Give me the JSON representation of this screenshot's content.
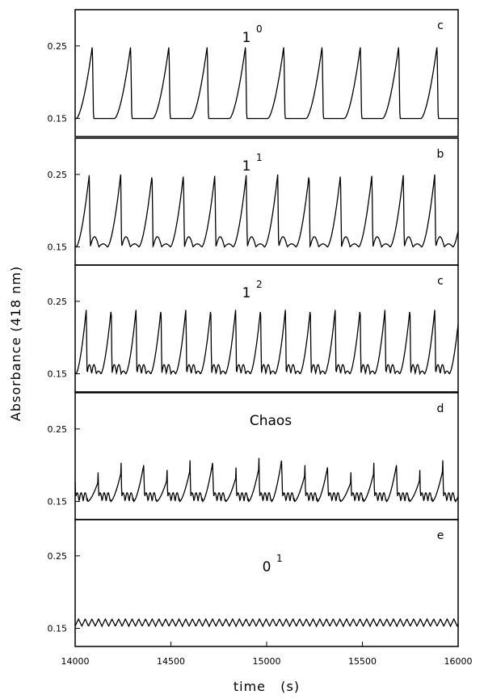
{
  "chart_data": {
    "type": "line",
    "xlabel": "time   (s)",
    "ylabel": "Absorbance (418 nm)",
    "xlim": [
      14000,
      16000
    ],
    "x_ticks": [
      "14000",
      "14500",
      "15000",
      "15500",
      "16000"
    ],
    "x_tick_values": [
      14000,
      14500,
      15000,
      15500,
      16000
    ],
    "y_ticks": [
      "0.15",
      "0.25"
    ],
    "y_tick_values": [
      0.15,
      0.25
    ],
    "ylim": [
      0.125,
      0.3
    ],
    "line_color": "#000000",
    "panels": [
      {
        "letter": "c",
        "label": "1",
        "label_sup": "0",
        "pattern": "1^0 (one large oscillation per period)",
        "period_s": 200,
        "min": 0.15,
        "max": 0.25,
        "small_oscillations_per_period": 0
      },
      {
        "letter": "b",
        "label": "1",
        "label_sup": "1",
        "pattern": "1^1 (one large + one small oscillation per period)",
        "period_s": 164,
        "min": 0.15,
        "max": 0.25,
        "small_oscillations_per_period": 1
      },
      {
        "letter": "c",
        "label": "1",
        "label_sup": "2",
        "pattern": "1^2 (one large + two small oscillations per period)",
        "period_s": 130,
        "min": 0.15,
        "max": 0.24,
        "small_oscillations_per_period": 2
      },
      {
        "letter": "d",
        "label": "Chaos",
        "label_sup": "",
        "pattern": "chaotic mixed-mode oscillations",
        "min": 0.15,
        "max": 0.21
      },
      {
        "letter": "e",
        "label": "0",
        "label_sup": "1",
        "pattern": "0^1 (small-amplitude oscillations only)",
        "period_s": 35,
        "min": 0.153,
        "max": 0.163
      }
    ]
  }
}
